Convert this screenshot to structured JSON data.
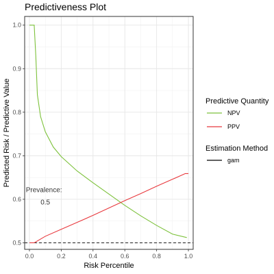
{
  "chart_data": {
    "type": "line",
    "title": "Predictiveness Plot",
    "xlabel": "Risk Percentile",
    "ylabel": "Predicted Risk / Predictive Value",
    "xlim": [
      -0.03,
      1.03
    ],
    "ylim": [
      0.485,
      1.02
    ],
    "x_ticks": [
      0.0,
      0.2,
      0.4,
      0.6,
      0.8,
      1.0
    ],
    "x_tick_labels": [
      "0.0",
      "0.2",
      "0.4",
      "0.6",
      "0.8",
      "1.0"
    ],
    "y_ticks": [
      0.5,
      0.6,
      0.7,
      0.8,
      0.9,
      1.0
    ],
    "y_tick_labels": [
      "0.5",
      "0.6",
      "0.7",
      "0.8",
      "0.9",
      "1.0"
    ],
    "grid": true,
    "legend_position": "right",
    "legends": [
      {
        "title": "Predictive Quantity",
        "entries": [
          {
            "label": "NPV",
            "color": "#7cc13a",
            "style": "solid"
          },
          {
            "label": "PPV",
            "color": "#e8383d",
            "style": "solid"
          }
        ]
      },
      {
        "title": "Estimation Method",
        "entries": [
          {
            "label": "gam",
            "color": "#000000",
            "style": "solid"
          }
        ]
      }
    ],
    "series": [
      {
        "name": "NPV",
        "color": "#7cc13a",
        "points": [
          [
            0.0,
            1.0
          ],
          [
            0.03,
            1.0
          ],
          [
            0.04,
            0.93
          ],
          [
            0.05,
            0.84
          ],
          [
            0.07,
            0.79
          ],
          [
            0.1,
            0.755
          ],
          [
            0.15,
            0.72
          ],
          [
            0.2,
            0.698
          ],
          [
            0.3,
            0.665
          ],
          [
            0.4,
            0.638
          ],
          [
            0.5,
            0.612
          ],
          [
            0.6,
            0.586
          ],
          [
            0.7,
            0.562
          ],
          [
            0.8,
            0.54
          ],
          [
            0.9,
            0.52
          ],
          [
            0.99,
            0.512
          ]
        ]
      },
      {
        "name": "PPV",
        "color": "#e8383d",
        "points": [
          [
            0.0,
            0.5
          ],
          [
            0.03,
            0.5
          ],
          [
            0.1,
            0.515
          ],
          [
            0.2,
            0.531
          ],
          [
            0.3,
            0.547
          ],
          [
            0.4,
            0.563
          ],
          [
            0.5,
            0.58
          ],
          [
            0.6,
            0.597
          ],
          [
            0.7,
            0.613
          ],
          [
            0.8,
            0.63
          ],
          [
            0.9,
            0.646
          ],
          [
            0.98,
            0.659
          ],
          [
            1.0,
            0.659
          ]
        ]
      }
    ],
    "reference_line": {
      "y": 0.5,
      "style": "dashed",
      "color": "#000000"
    },
    "annotation": {
      "label": "Prevalence:",
      "value": "0.5",
      "x": 0.1,
      "y": 0.605
    }
  }
}
